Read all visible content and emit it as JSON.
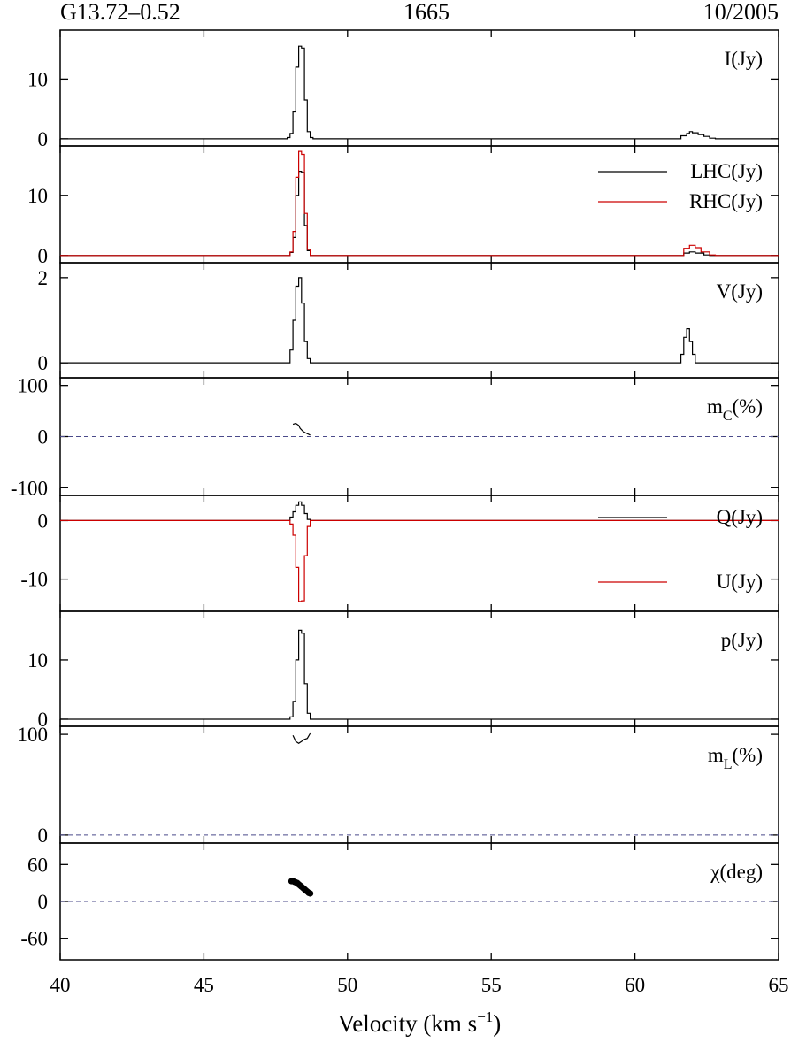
{
  "header": {
    "source": "G13.72–0.52",
    "frequency": "1665",
    "epoch": "10/2005"
  },
  "chart_data": {
    "type": "line",
    "xlabel_main": "Velocity (km s",
    "xlabel_sup": "−1",
    "xlabel_end": ")",
    "xlim": [
      40,
      65
    ],
    "xticks": [
      40,
      45,
      50,
      55,
      60,
      65
    ],
    "xtick_labels": [
      "40",
      "45",
      "50",
      "55",
      "60",
      "65"
    ],
    "panels": [
      {
        "id": "I",
        "label": "I(Jy)",
        "ylim": [
          -1.2,
          18.2
        ],
        "yticks": [
          0,
          10
        ],
        "ytick_labels": [
          "0",
          "10"
        ],
        "zero_line": false,
        "series": [
          {
            "name": "I(Jy)",
            "color": "#000000",
            "style": "step",
            "points": [
              [
                40,
                0
              ],
              [
                47.6,
                0
              ],
              [
                47.9,
                0.2
              ],
              [
                48.0,
                0.9
              ],
              [
                48.1,
                4.5
              ],
              [
                48.2,
                12
              ],
              [
                48.3,
                15.5
              ],
              [
                48.4,
                15.2
              ],
              [
                48.5,
                6.5
              ],
              [
                48.6,
                1.2
              ],
              [
                48.7,
                0.2
              ],
              [
                48.8,
                0
              ],
              [
                61.4,
                0
              ],
              [
                61.6,
                0.5
              ],
              [
                61.8,
                0.9
              ],
              [
                61.9,
                1.2
              ],
              [
                62.0,
                1.0
              ],
              [
                62.2,
                0.7
              ],
              [
                62.4,
                0.4
              ],
              [
                62.6,
                0.1
              ],
              [
                62.8,
                0
              ],
              [
                65,
                0
              ]
            ]
          }
        ]
      },
      {
        "id": "LR",
        "label": "",
        "ylim": [
          -1.2,
          18.2
        ],
        "yticks": [
          0,
          10
        ],
        "ytick_labels": [
          "0",
          "10"
        ],
        "zero_line": false,
        "legend": [
          {
            "text": "LHC(Jy)",
            "color": "#000000"
          },
          {
            "text": "RHC(Jy)",
            "color": "#cc0000"
          }
        ],
        "series": [
          {
            "name": "LHC(Jy)",
            "color": "#000000",
            "style": "step",
            "points": [
              [
                40,
                0
              ],
              [
                47.7,
                0
              ],
              [
                48.0,
                0.5
              ],
              [
                48.1,
                3
              ],
              [
                48.2,
                10
              ],
              [
                48.3,
                14
              ],
              [
                48.4,
                13.8
              ],
              [
                48.5,
                5
              ],
              [
                48.6,
                0.8
              ],
              [
                48.7,
                0
              ],
              [
                61.5,
                0
              ],
              [
                61.7,
                0.4
              ],
              [
                61.9,
                0.6
              ],
              [
                62.1,
                0.4
              ],
              [
                62.4,
                0.1
              ],
              [
                62.6,
                0
              ],
              [
                65,
                0
              ]
            ]
          },
          {
            "name": "RHC(Jy)",
            "color": "#cc0000",
            "style": "step",
            "points": [
              [
                40,
                0
              ],
              [
                47.7,
                0
              ],
              [
                48.0,
                0.6
              ],
              [
                48.1,
                4
              ],
              [
                48.2,
                13
              ],
              [
                48.3,
                17.3
              ],
              [
                48.4,
                16.8
              ],
              [
                48.5,
                7
              ],
              [
                48.6,
                1
              ],
              [
                48.7,
                0
              ],
              [
                61.5,
                0
              ],
              [
                61.7,
                1.2
              ],
              [
                61.9,
                1.7
              ],
              [
                62.1,
                1.3
              ],
              [
                62.3,
                0.6
              ],
              [
                62.6,
                0.1
              ],
              [
                62.8,
                0
              ],
              [
                65,
                0
              ]
            ]
          }
        ]
      },
      {
        "id": "V",
        "label": "V(Jy)",
        "ylim": [
          -0.35,
          2.35
        ],
        "yticks": [
          0,
          2
        ],
        "ytick_labels": [
          "0",
          "2"
        ],
        "zero_line": false,
        "series": [
          {
            "name": "V(Jy)",
            "color": "#000000",
            "style": "step",
            "points": [
              [
                40,
                0
              ],
              [
                47.9,
                0
              ],
              [
                48.0,
                0.3
              ],
              [
                48.1,
                1.0
              ],
              [
                48.2,
                1.8
              ],
              [
                48.3,
                2.0
              ],
              [
                48.4,
                1.4
              ],
              [
                48.5,
                0.5
              ],
              [
                48.6,
                0.1
              ],
              [
                48.7,
                0
              ],
              [
                61.5,
                0
              ],
              [
                61.6,
                0.2
              ],
              [
                61.7,
                0.6
              ],
              [
                61.8,
                0.8
              ],
              [
                61.9,
                0.5
              ],
              [
                62.0,
                0.2
              ],
              [
                62.1,
                0
              ],
              [
                65,
                0
              ]
            ]
          }
        ]
      },
      {
        "id": "mc",
        "label": "m",
        "label_sub": "C",
        "label_end": "(%)",
        "ylim": [
          -115,
          115
        ],
        "yticks": [
          -100,
          0,
          100
        ],
        "ytick_labels": [
          "-100",
          "0",
          "100"
        ],
        "zero_line": true,
        "series": [
          {
            "name": "mC",
            "color": "#000000",
            "style": "line",
            "points": [
              [
                48.1,
                24
              ],
              [
                48.2,
                26
              ],
              [
                48.3,
                22
              ],
              [
                48.35,
                16
              ],
              [
                48.45,
                10
              ],
              [
                48.55,
                7
              ],
              [
                48.7,
                3
              ]
            ]
          }
        ]
      },
      {
        "id": "QU",
        "label": "",
        "ylim": [
          -15.5,
          4.3
        ],
        "yticks": [
          -10,
          0
        ],
        "ytick_labels": [
          "-10",
          "0"
        ],
        "zero_line": false,
        "legend": [
          {
            "text": "Q(Jy)",
            "color": "#000000"
          },
          {
            "text": "U(Jy)",
            "color": "#cc0000"
          }
        ],
        "series": [
          {
            "name": "Q(Jy)",
            "color": "#000000",
            "style": "step",
            "points": [
              [
                40,
                0
              ],
              [
                47.9,
                0
              ],
              [
                48.0,
                0.6
              ],
              [
                48.1,
                1.5
              ],
              [
                48.2,
                2.6
              ],
              [
                48.3,
                3.2
              ],
              [
                48.4,
                2.6
              ],
              [
                48.5,
                1.2
              ],
              [
                48.6,
                0.2
              ],
              [
                48.7,
                0
              ],
              [
                65,
                0
              ]
            ]
          },
          {
            "name": "U(Jy)",
            "color": "#cc0000",
            "style": "step",
            "points": [
              [
                40,
                0
              ],
              [
                47.9,
                0
              ],
              [
                48.0,
                -0.6
              ],
              [
                48.1,
                -2.5
              ],
              [
                48.2,
                -8
              ],
              [
                48.3,
                -13.8
              ],
              [
                48.4,
                -13.7
              ],
              [
                48.5,
                -6
              ],
              [
                48.6,
                -1
              ],
              [
                48.7,
                0
              ],
              [
                65,
                0
              ]
            ]
          }
        ]
      },
      {
        "id": "p",
        "label": "p(Jy)",
        "ylim": [
          -1.2,
          18.2
        ],
        "yticks": [
          0,
          10
        ],
        "ytick_labels": [
          "0",
          "10"
        ],
        "zero_line": false,
        "series": [
          {
            "name": "p(Jy)",
            "color": "#000000",
            "style": "step",
            "points": [
              [
                40,
                0
              ],
              [
                47.9,
                0
              ],
              [
                48.0,
                0.4
              ],
              [
                48.1,
                3
              ],
              [
                48.2,
                10
              ],
              [
                48.3,
                15
              ],
              [
                48.4,
                14.5
              ],
              [
                48.5,
                6
              ],
              [
                48.6,
                1
              ],
              [
                48.7,
                0
              ],
              [
                65,
                0
              ]
            ]
          }
        ]
      },
      {
        "id": "mL",
        "label": "m",
        "label_sub": "L",
        "label_end": "(%)",
        "ylim": [
          -8,
          108
        ],
        "yticks": [
          0,
          100
        ],
        "ytick_labels": [
          "0",
          "100"
        ],
        "zero_line": true,
        "series": [
          {
            "name": "mL",
            "color": "#000000",
            "style": "line",
            "points": [
              [
                48.1,
                99
              ],
              [
                48.2,
                93
              ],
              [
                48.3,
                91
              ],
              [
                48.4,
                93
              ],
              [
                48.5,
                95
              ],
              [
                48.6,
                96
              ],
              [
                48.7,
                101
              ]
            ]
          }
        ]
      },
      {
        "id": "chi",
        "label": "χ(deg)",
        "ylim": [
          -95,
          95
        ],
        "yticks": [
          -60,
          0,
          60
        ],
        "ytick_labels": [
          "-60",
          "0",
          "60"
        ],
        "zero_line": true,
        "series": [
          {
            "name": "chi",
            "color": "#000000",
            "style": "dots",
            "points": [
              [
                48.05,
                33
              ],
              [
                48.1,
                33
              ],
              [
                48.15,
                32
              ],
              [
                48.2,
                31
              ],
              [
                48.25,
                30
              ],
              [
                48.3,
                28
              ],
              [
                48.35,
                26
              ],
              [
                48.4,
                24
              ],
              [
                48.45,
                22
              ],
              [
                48.5,
                20
              ],
              [
                48.55,
                18
              ],
              [
                48.6,
                16
              ],
              [
                48.65,
                14
              ],
              [
                48.7,
                13
              ]
            ]
          }
        ]
      }
    ]
  }
}
